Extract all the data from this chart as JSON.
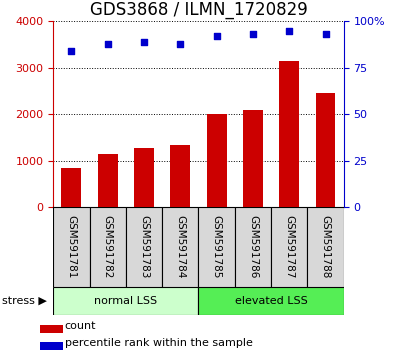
{
  "title": "GDS3868 / ILMN_1720829",
  "samples": [
    "GSM591781",
    "GSM591782",
    "GSM591783",
    "GSM591784",
    "GSM591785",
    "GSM591786",
    "GSM591787",
    "GSM591788"
  ],
  "counts": [
    850,
    1150,
    1280,
    1340,
    2000,
    2100,
    3150,
    2450
  ],
  "percentiles": [
    84,
    88,
    89,
    88,
    92,
    93,
    95,
    93
  ],
  "bar_color": "#cc0000",
  "dot_color": "#0000cc",
  "ylim_left": [
    0,
    4000
  ],
  "ylim_right": [
    0,
    100
  ],
  "yticks_left": [
    0,
    1000,
    2000,
    3000,
    4000
  ],
  "yticks_right": [
    0,
    25,
    50,
    75,
    100
  ],
  "ytick_labels_right": [
    "0",
    "25",
    "50",
    "75",
    "100%"
  ],
  "group1_label": "normal LSS",
  "group2_label": "elevated LSS",
  "group1_indices": [
    0,
    1,
    2,
    3
  ],
  "group2_indices": [
    4,
    5,
    6,
    7
  ],
  "stress_label": "stress ▶",
  "legend_count": "count",
  "legend_percentile": "percentile rank within the sample",
  "bg_color": "#d8d8d8",
  "group1_color": "#ccffcc",
  "group2_color": "#55ee55",
  "title_fontsize": 12,
  "tick_fontsize": 8,
  "label_fontsize": 8,
  "sample_fontsize": 7.5
}
